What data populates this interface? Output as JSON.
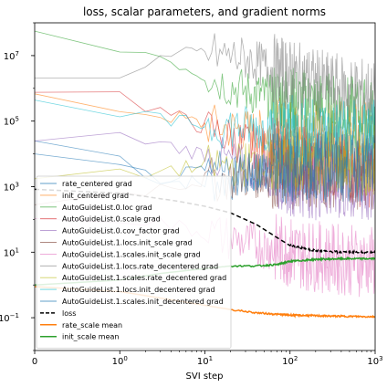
{
  "chart_data": {
    "type": "line",
    "title": "loss, scalar parameters, and gradient norms",
    "xlabel": "SVI step",
    "ylabel": "",
    "x_scale": "symlog",
    "y_scale": "log",
    "xlim": [
      0,
      1000
    ],
    "ylim_exponent": [
      -2,
      8
    ],
    "x_ticks": [
      {
        "value": 0,
        "label": "0"
      },
      {
        "value": 1,
        "label": "10",
        "exp": "0"
      },
      {
        "value": 10,
        "label": "10",
        "exp": "1"
      },
      {
        "value": 100,
        "label": "10",
        "exp": "2"
      },
      {
        "value": 1000,
        "label": "10",
        "exp": "3"
      }
    ],
    "y_ticks": [
      {
        "exponent": -1,
        "label": "10",
        "exp": "−1"
      },
      {
        "exponent": 1,
        "label": "10",
        "exp": "1"
      },
      {
        "exponent": 3,
        "label": "10",
        "exp": "3"
      },
      {
        "exponent": 5,
        "label": "10",
        "exp": "5"
      },
      {
        "exponent": 7,
        "label": "10",
        "exp": "7"
      }
    ],
    "legend_position": "lower-left",
    "series": [
      {
        "name": "rate_centered grad",
        "color": "#1f77b4",
        "style": "thin",
        "log10_values": [
          [
            0,
            4.4
          ],
          [
            1,
            3.9
          ],
          [
            3,
            3.2
          ],
          [
            10,
            3.1
          ],
          [
            30,
            3.3
          ],
          [
            100,
            3.6
          ],
          [
            300,
            3.8
          ],
          [
            1000,
            3.9
          ]
        ]
      },
      {
        "name": "init_centered grad",
        "color": "#ff7f0e",
        "style": "thin",
        "log10_values": [
          [
            0,
            5.6
          ],
          [
            1,
            5.4
          ],
          [
            3,
            5.2
          ],
          [
            10,
            4.9
          ],
          [
            30,
            4.7
          ],
          [
            100,
            4.6
          ],
          [
            300,
            4.5
          ],
          [
            1000,
            4.5
          ]
        ]
      },
      {
        "name": "AutoGuideList.0.loc grad",
        "color": "#2ca02c",
        "style": "thin",
        "log10_values": [
          [
            0,
            7.5
          ],
          [
            1,
            7.3
          ],
          [
            3,
            7.0
          ],
          [
            10,
            6.4
          ],
          [
            30,
            5.9
          ],
          [
            100,
            5.6
          ],
          [
            300,
            5.4
          ],
          [
            1000,
            5.2
          ]
        ]
      },
      {
        "name": "AutoGuideList.0.scale grad",
        "color": "#d62728",
        "style": "thin",
        "log10_values": [
          [
            0,
            6.0
          ],
          [
            1,
            5.8
          ],
          [
            3,
            5.3
          ],
          [
            10,
            4.8
          ],
          [
            30,
            4.3
          ],
          [
            100,
            3.9
          ],
          [
            300,
            3.6
          ],
          [
            1000,
            3.4
          ]
        ]
      },
      {
        "name": "AutoGuideList.0.cov_factor grad",
        "color": "#9467bd",
        "style": "thin",
        "log10_values": [
          [
            0,
            4.6
          ],
          [
            1,
            4.5
          ],
          [
            3,
            4.3
          ],
          [
            10,
            4.0
          ],
          [
            30,
            3.6
          ],
          [
            100,
            3.2
          ],
          [
            300,
            3.0
          ],
          [
            1000,
            2.8
          ]
        ]
      },
      {
        "name": "AutoGuideList.1.locs.init_scale grad",
        "color": "#8c564b",
        "style": "thin",
        "log10_values": [
          [
            0,
            2.6
          ],
          [
            1,
            2.8
          ],
          [
            3,
            3.0
          ],
          [
            10,
            3.2
          ],
          [
            30,
            3.3
          ],
          [
            100,
            3.4
          ],
          [
            300,
            3.4
          ],
          [
            1000,
            3.4
          ]
        ]
      },
      {
        "name": "AutoGuideList.1.scales.init_scale grad",
        "color": "#e377c2",
        "style": "thin",
        "log10_values": [
          [
            0,
            2.2
          ],
          [
            1,
            2.1
          ],
          [
            3,
            1.9
          ],
          [
            10,
            1.6
          ],
          [
            30,
            1.3
          ],
          [
            100,
            1.0
          ],
          [
            300,
            0.8
          ],
          [
            1000,
            0.7
          ]
        ]
      },
      {
        "name": "AutoGuideList.1.locs.rate_decentered grad",
        "color": "#7f7f7f",
        "style": "thin",
        "log10_values": [
          [
            0,
            6.3
          ],
          [
            1,
            6.5
          ],
          [
            3,
            6.9
          ],
          [
            10,
            7.1
          ],
          [
            30,
            6.9
          ],
          [
            100,
            6.4
          ],
          [
            300,
            6.0
          ],
          [
            1000,
            5.8
          ]
        ]
      },
      {
        "name": "AutoGuideList.1.scales.rate_decentered grad",
        "color": "#bcbd22",
        "style": "thin",
        "log10_values": [
          [
            0,
            3.2
          ],
          [
            1,
            3.3
          ],
          [
            3,
            3.5
          ],
          [
            10,
            3.6
          ],
          [
            30,
            3.7
          ],
          [
            100,
            3.8
          ],
          [
            300,
            3.8
          ],
          [
            1000,
            3.8
          ]
        ]
      },
      {
        "name": "AutoGuideList.1.locs.init_decentered grad",
        "color": "#17becf",
        "style": "thin",
        "log10_values": [
          [
            0,
            5.5
          ],
          [
            1,
            5.2
          ],
          [
            3,
            5.0
          ],
          [
            10,
            4.9
          ],
          [
            30,
            4.8
          ],
          [
            100,
            4.7
          ],
          [
            300,
            4.6
          ],
          [
            1000,
            4.6
          ]
        ]
      },
      {
        "name": "AutoGuideList.1.scales.init_decentered grad",
        "color": "#1f77b4",
        "style": "thin",
        "log10_values": [
          [
            0,
            3.8
          ],
          [
            1,
            3.5
          ],
          [
            3,
            3.3
          ],
          [
            10,
            3.4
          ],
          [
            30,
            3.5
          ],
          [
            100,
            3.6
          ],
          [
            300,
            3.6
          ],
          [
            1000,
            3.6
          ]
        ]
      },
      {
        "name": "loss",
        "color": "#000000",
        "style": "dashed",
        "log10_values": [
          [
            0,
            2.92
          ],
          [
            0.5,
            2.85
          ],
          [
            1,
            2.8
          ],
          [
            2,
            2.7
          ],
          [
            5,
            2.55
          ],
          [
            10,
            2.4
          ],
          [
            20,
            2.2
          ],
          [
            40,
            1.85
          ],
          [
            70,
            1.45
          ],
          [
            100,
            1.2
          ],
          [
            200,
            1.05
          ],
          [
            400,
            1.0
          ],
          [
            1000,
            1.0
          ]
        ]
      },
      {
        "name": "rate_scale mean",
        "color": "#ff7f0e",
        "style": "solid",
        "log10_values": [
          [
            0,
            -0.05
          ],
          [
            1,
            -0.2
          ],
          [
            3,
            -0.4
          ],
          [
            10,
            -0.62
          ],
          [
            20,
            -0.75
          ],
          [
            40,
            -0.85
          ],
          [
            100,
            -0.92
          ],
          [
            300,
            -0.95
          ],
          [
            1000,
            -0.97
          ]
        ]
      },
      {
        "name": "init_scale mean",
        "color": "#2ca02c",
        "style": "solid",
        "log10_values": [
          [
            0,
            0.0
          ],
          [
            1,
            0.15
          ],
          [
            3,
            0.35
          ],
          [
            10,
            0.5
          ],
          [
            20,
            0.58
          ],
          [
            40,
            0.58
          ],
          [
            70,
            0.62
          ],
          [
            100,
            0.72
          ],
          [
            200,
            0.78
          ],
          [
            400,
            0.8
          ],
          [
            1000,
            0.8
          ]
        ]
      }
    ]
  }
}
